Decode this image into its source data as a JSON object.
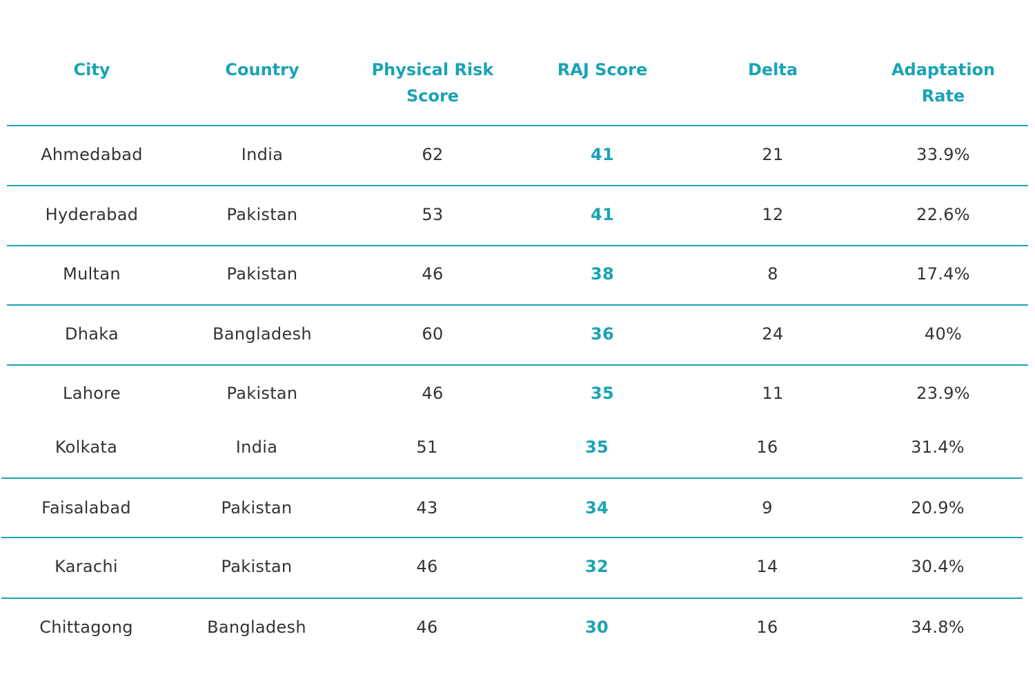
{
  "table": {
    "header": [
      "City",
      "Country",
      "Physical Risk Score",
      "RAJ Score",
      "Delta",
      "Adaptation Rate"
    ],
    "rows": [
      [
        "Ahmedabad",
        "India",
        62,
        41,
        21,
        "33.9%"
      ],
      [
        "Hyderabad",
        "Pakistan",
        53,
        41,
        12,
        "22.6%"
      ],
      [
        "Multan",
        "Pakistan",
        46,
        38,
        8,
        "17.4%"
      ],
      [
        "Dhaka",
        "Bangladesh",
        60,
        36,
        24,
        "40%"
      ],
      [
        "Lahore",
        "Pakistan",
        46,
        35,
        11,
        "23.9%"
      ],
      [
        "Kolkata",
        "India",
        51,
        35,
        16,
        "31.4%"
      ],
      [
        "Faisalabad",
        "Pakistan",
        43,
        34,
        9,
        "20.9%"
      ],
      [
        "Karachi",
        "Pakistan",
        46,
        32,
        14,
        "30.4%"
      ],
      [
        "Chittagong",
        "Bangladesh",
        46,
        30,
        16,
        "34.8%"
      ]
    ]
  }
}
